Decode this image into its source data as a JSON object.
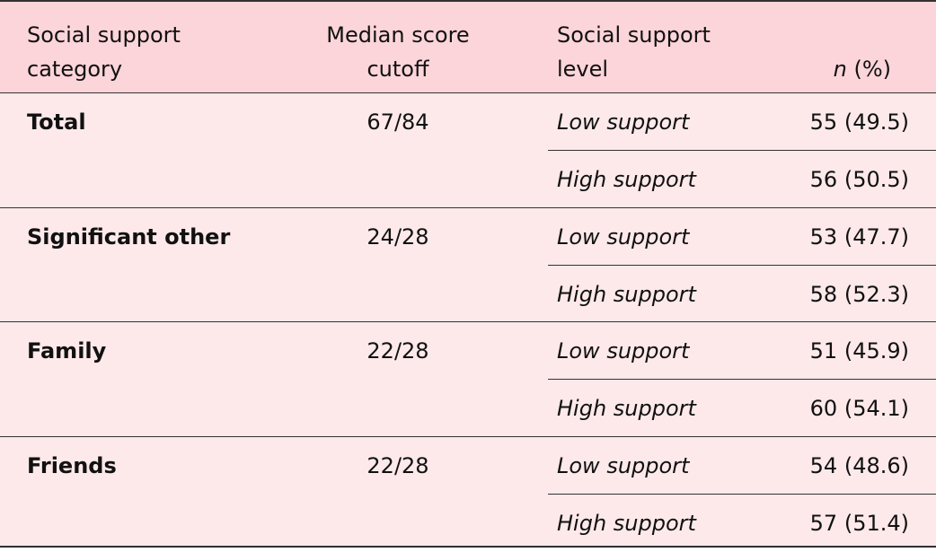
{
  "header": {
    "category": "Social support category",
    "cutoff": "Median score cutoff",
    "level": "Social support level",
    "n_col": [
      "n",
      "(%)"
    ]
  },
  "groups": [
    {
      "category": "Total",
      "cutoff": "67/84",
      "levels": [
        {
          "level": "Low support",
          "value": "55 (49.5)"
        },
        {
          "level": "High support",
          "value": "56 (50.5)"
        }
      ]
    },
    {
      "category": "Significant other",
      "cutoff": "24/28",
      "levels": [
        {
          "level": "Low support",
          "value": "53 (47.7)"
        },
        {
          "level": "High support",
          "value": "58 (52.3)"
        }
      ]
    },
    {
      "category": "Family",
      "cutoff": "22/28",
      "levels": [
        {
          "level": "Low support",
          "value": "51 (45.9)"
        },
        {
          "level": "High support",
          "value": "60 (54.1)"
        }
      ]
    },
    {
      "category": "Friends",
      "cutoff": "22/28",
      "levels": [
        {
          "level": "Low support",
          "value": "54 (48.6)"
        },
        {
          "level": "High support",
          "value": "57 (51.4)"
        }
      ]
    }
  ]
}
